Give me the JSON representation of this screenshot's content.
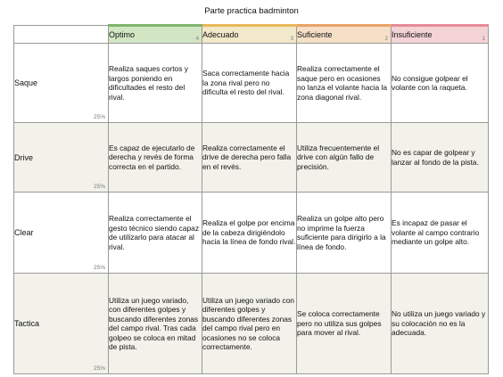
{
  "title": "Parte practica badminton",
  "levels": [
    {
      "label": "Optimo",
      "score": "4",
      "color": "#7fb56c"
    },
    {
      "label": "Adecuado",
      "score": "3",
      "color": "#e5b85a"
    },
    {
      "label": "Suficiente",
      "score": "2",
      "color": "#e9a468"
    },
    {
      "label": "Insuficiente",
      "score": "1",
      "color": "#e58b98"
    }
  ],
  "rows": [
    {
      "criterion": "Saque",
      "weight": "25%",
      "cells": [
        "Realiza saques cortos y largos poniendo en dificultades el resto del rival.",
        "Saca correctamente hacia la zona rival pero no dificulta el resto del rival.",
        "Realiza correctamente el saque pero en ocasiones no lanza el volante hacia la zona diagonal rival.",
        "No consigue golpear el volante con la raqueta."
      ]
    },
    {
      "criterion": "Drive",
      "weight": "25%",
      "cells": [
        "Es capaz de ejecutarlo de derecha y revés de forma correcta en el partido.",
        "Realiza correctamente el drive de derecha pero falla en el revés.",
        "Utiliza frecuentemente el drive con algún fallo de precisión.",
        "No es capar de golpear y lanzar al fondo de la pista."
      ]
    },
    {
      "criterion": "Clear",
      "weight": "25%",
      "cells": [
        "Realiza correctamente el gesto técnico siendo capaz de utilizarlo para atacar al rival.",
        "Realiza el golpe por encima de la cabeza dirigiéndolo hacia la línea de fondo rival.",
        "Realiza un golpe alto pero no imprime la fuerza suficiente para dirigirlo a la línea de fondo.",
        "Es incapaz de pasar el volante al campo contrario mediante un golpe alto."
      ]
    },
    {
      "criterion": "Tactica",
      "weight": "25%",
      "cells": [
        "Utiliza un juego variado, con diferentes golpes y buscando diferentes zonas del campo rival. Tras cada golpeo se coloca en mitad de pista.",
        "Utiliza un juego variado con diferentes golpes y buscando diferentes zonas del campo rival pero en ocasiones no se coloca correctamente.",
        "Se coloca correctamente pero no utiliza sus golpes para mover al rival.",
        "No utiliza un juego variado y su colocación no es la adecuada."
      ]
    }
  ]
}
